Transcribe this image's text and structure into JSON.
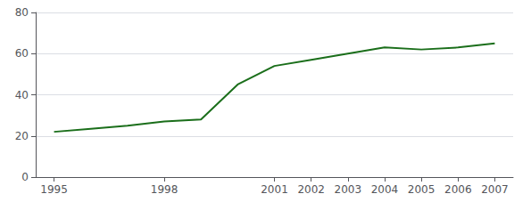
{
  "chart_data": {
    "type": "line",
    "x": [
      1995,
      1996,
      1997,
      1998,
      1999,
      2000,
      2001,
      2002,
      2003,
      2004,
      2005,
      2006,
      2007
    ],
    "values": [
      22,
      23.5,
      25,
      27,
      28,
      45,
      54,
      57,
      60,
      63,
      62,
      63,
      65
    ],
    "color": "#1a6e1a",
    "xlim": [
      1994.5,
      2007.5
    ],
    "xticks": [
      1995,
      1998,
      2001,
      2002,
      2003,
      2004,
      2005,
      2006,
      2007
    ],
    "ylim": [
      0,
      80
    ],
    "yticks": [
      0,
      20,
      40,
      60,
      80
    ],
    "grid": true
  }
}
